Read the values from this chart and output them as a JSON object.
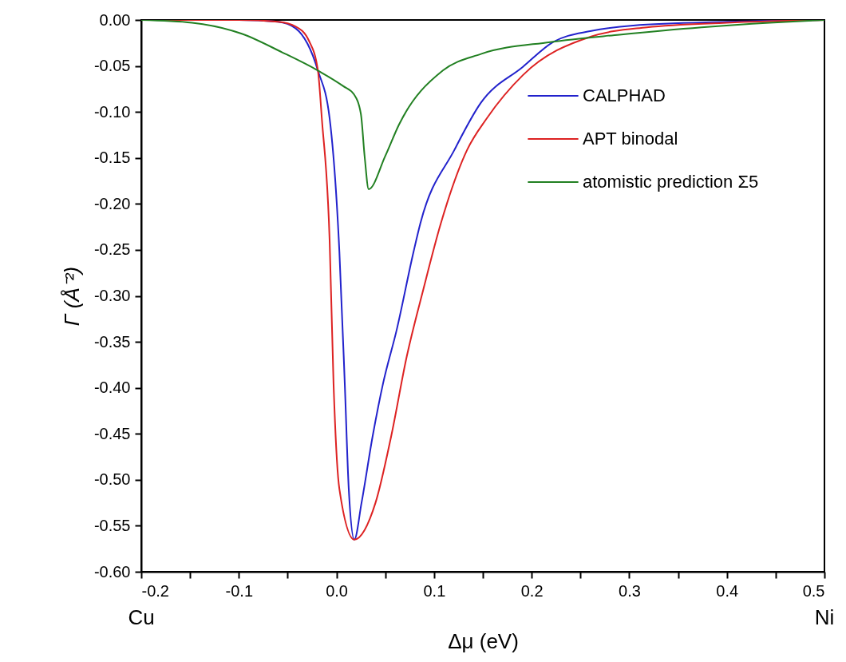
{
  "chart_data": {
    "type": "line",
    "xlabel": "Δμ (eV)",
    "ylabel": "Γ (Å⁻²)",
    "xlim": [
      -0.2,
      0.5
    ],
    "ylim": [
      -0.6,
      0
    ],
    "xticks": [
      {
        "value": -0.2,
        "label": "-0.2"
      },
      {
        "value": -0.15,
        "label": null
      },
      {
        "value": -0.1,
        "label": "-0.1"
      },
      {
        "value": -0.05,
        "label": null
      },
      {
        "value": 0,
        "label": "0.0"
      },
      {
        "value": 0.05,
        "label": null
      },
      {
        "value": 0.1,
        "label": "0.1"
      },
      {
        "value": 0.15,
        "label": null
      },
      {
        "value": 0.2,
        "label": "0.2"
      },
      {
        "value": 0.25,
        "label": null
      },
      {
        "value": 0.3,
        "label": "0.3"
      },
      {
        "value": 0.35,
        "label": null
      },
      {
        "value": 0.4,
        "label": "0.4"
      },
      {
        "value": 0.45,
        "label": null
      },
      {
        "value": 0.5,
        "label": "0.5"
      }
    ],
    "yticks": [
      {
        "value": 0,
        "label": "0.00"
      },
      {
        "value": -0.05,
        "label": "-0.05"
      },
      {
        "value": -0.1,
        "label": "-0.10"
      },
      {
        "value": -0.15,
        "label": "-0.15"
      },
      {
        "value": -0.2,
        "label": "-0.20"
      },
      {
        "value": -0.25,
        "label": "-0.25"
      },
      {
        "value": -0.3,
        "label": "-0.30"
      },
      {
        "value": -0.35,
        "label": "-0.35"
      },
      {
        "value": -0.4,
        "label": "-0.40"
      },
      {
        "value": -0.45,
        "label": "-0.45"
      },
      {
        "value": -0.5,
        "label": "-0.50"
      },
      {
        "value": -0.55,
        "label": "-0.55"
      },
      {
        "value": -0.6,
        "label": "-0.60"
      }
    ],
    "grid": false,
    "legend": "top right",
    "marker": "none",
    "line_style": "solid",
    "annotations": [
      "Cu",
      "Ni"
    ],
    "series": [
      {
        "name": "CALPHAD",
        "color": "#2222cc",
        "x": [
          -0.2,
          -0.1,
          -0.06,
          -0.042,
          -0.019,
          -0.007,
          0.003,
          0.0085,
          0.0126,
          0.0183,
          0.0257,
          0.037,
          0.0478,
          0.0617,
          0.079,
          0.086,
          0.121,
          0.148,
          0.191,
          0.222,
          0.261,
          0.304,
          0.4,
          0.5
        ],
        "values": [
          0,
          0,
          -0.002,
          -0.009,
          -0.055,
          -0.107,
          -0.252,
          -0.395,
          -0.51,
          -0.565,
          -0.525,
          -0.453,
          -0.395,
          -0.337,
          -0.252,
          -0.221,
          -0.141,
          -0.09,
          -0.051,
          -0.024,
          -0.012,
          -0.006,
          -0.002,
          0
        ]
      },
      {
        "name": "APT binodal",
        "color": "#dd2222",
        "x": [
          -0.2,
          -0.1,
          -0.06,
          -0.042,
          -0.028,
          -0.019,
          -0.015,
          -0.007,
          -0.003,
          0.003,
          0.0183,
          0.04,
          0.056,
          0.072,
          0.089,
          0.107,
          0.134,
          0.154,
          0.191,
          0.261,
          0.318,
          0.4,
          0.5
        ],
        "values": [
          0,
          0,
          -0.002,
          -0.007,
          -0.023,
          -0.055,
          -0.107,
          -0.24,
          -0.395,
          -0.51,
          -0.565,
          -0.525,
          -0.453,
          -0.366,
          -0.293,
          -0.221,
          -0.141,
          -0.107,
          -0.06,
          -0.018,
          -0.008,
          -0.003,
          0
        ]
      },
      {
        "name": "atomistic prediction Σ5",
        "color": "#228022",
        "x": [
          -0.2,
          -0.148,
          -0.097,
          -0.056,
          -0.019,
          0.007,
          0.018,
          0.025,
          0.029,
          0.033,
          0.05,
          0.064,
          0.109,
          0.148,
          0.219,
          0.29,
          0.374,
          0.444,
          0.5
        ],
        "values": [
          0,
          -0.003,
          -0.015,
          -0.035,
          -0.055,
          -0.072,
          -0.081,
          -0.102,
          -0.15,
          -0.184,
          -0.148,
          -0.114,
          -0.055,
          -0.037,
          -0.024,
          -0.016,
          -0.008,
          -0.003,
          0
        ]
      }
    ]
  }
}
